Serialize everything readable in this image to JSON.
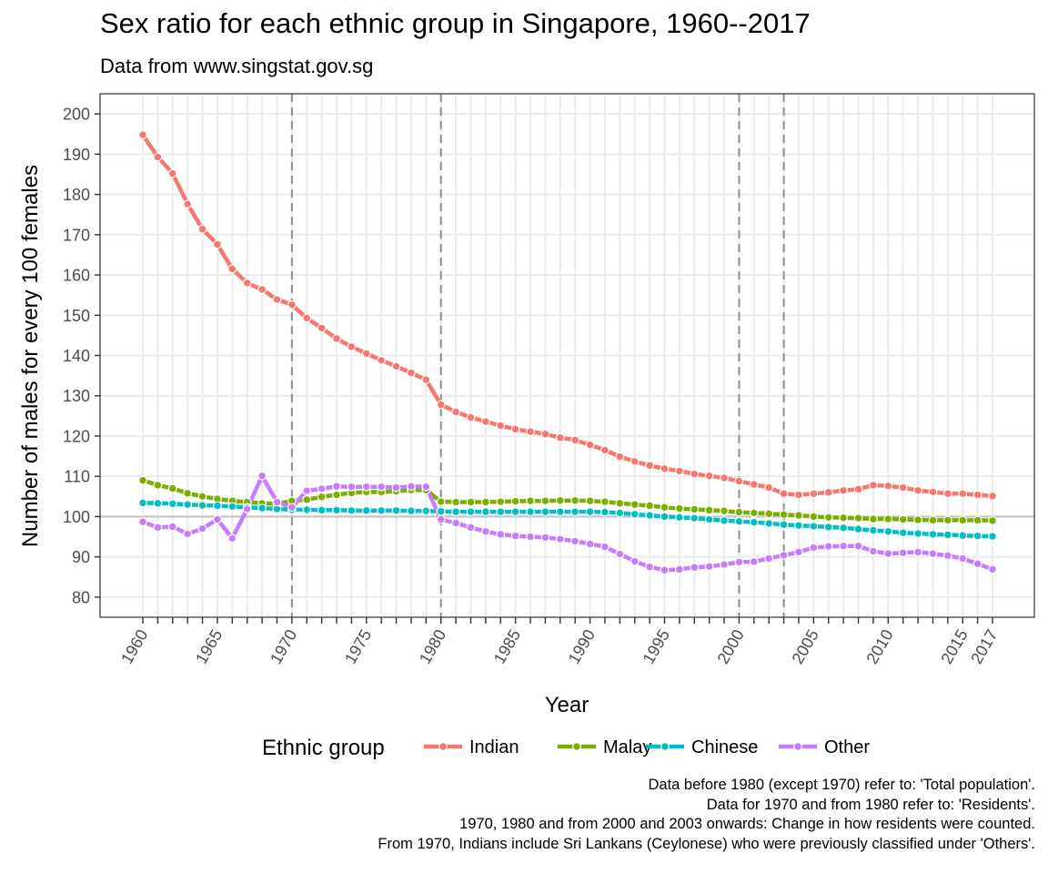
{
  "header": {
    "title": "Sex ratio for each ethnic group in Singapore, 1960--2017",
    "subtitle": "Data from www.singstat.gov.sg"
  },
  "caption": [
    "Data before 1980 (except 1970) refer to: 'Total population'.",
    "Data for 1970 and from 1980 refer to: 'Residents'.",
    "1970, 1980 and from 2000 and 2003 onwards: Change in how residents were counted.",
    "From 1970, Indians include Sri Lankans (Ceylonese) who were previously classified under 'Others'."
  ],
  "chart_data": {
    "type": "line",
    "title": "Sex ratio for each ethnic group in Singapore, 1960--2017",
    "subtitle": "Data from www.singstat.gov.sg",
    "xlabel": "Year",
    "ylabel": "Number of males for every 100 females",
    "xlim": [
      1960,
      2017
    ],
    "ylim": [
      75,
      205
    ],
    "yticks": [
      80,
      90,
      100,
      110,
      120,
      130,
      140,
      150,
      160,
      170,
      180,
      190,
      200
    ],
    "xtick_labels": [
      1960,
      1965,
      1970,
      1975,
      1980,
      1985,
      1990,
      1995,
      2000,
      2005,
      2010,
      2015,
      2017
    ],
    "reference_line_y": 100,
    "vertical_lines_x": [
      1970,
      1980,
      2000,
      2003
    ],
    "grid": true,
    "legend": {
      "title": "Ethnic group",
      "position": "bottom"
    },
    "x": [
      1960,
      1961,
      1962,
      1963,
      1964,
      1965,
      1966,
      1967,
      1968,
      1969,
      1970,
      1971,
      1972,
      1973,
      1974,
      1975,
      1976,
      1977,
      1978,
      1979,
      1980,
      1981,
      1982,
      1983,
      1984,
      1985,
      1986,
      1987,
      1988,
      1989,
      1990,
      1991,
      1992,
      1993,
      1994,
      1995,
      1996,
      1997,
      1998,
      1999,
      2000,
      2001,
      2002,
      2003,
      2004,
      2005,
      2006,
      2007,
      2008,
      2009,
      2010,
      2011,
      2012,
      2013,
      2014,
      2015,
      2016,
      2017
    ],
    "series": [
      {
        "name": "Indian",
        "color": "#F8766D",
        "values": [
          194.8,
          189.3,
          185.2,
          177.6,
          171.4,
          167.6,
          161.5,
          158.0,
          156.4,
          153.9,
          152.6,
          149.3,
          146.8,
          144.2,
          142.2,
          140.5,
          138.8,
          137.3,
          135.7,
          134.0,
          127.8,
          126.0,
          124.6,
          123.6,
          122.6,
          121.7,
          121.1,
          120.5,
          119.6,
          119.0,
          117.8,
          116.5,
          114.9,
          113.7,
          112.7,
          111.9,
          111.3,
          110.6,
          110.1,
          109.6,
          108.8,
          108.0,
          107.2,
          105.7,
          105.4,
          105.7,
          106.0,
          106.5,
          106.8,
          107.8,
          107.6,
          107.2,
          106.5,
          106.1,
          105.7,
          105.7,
          105.4,
          105.1
        ]
      },
      {
        "name": "Malay",
        "color": "#7CAE00",
        "values": [
          109.0,
          107.8,
          107.0,
          105.8,
          105.0,
          104.4,
          103.9,
          103.6,
          103.3,
          103.2,
          103.9,
          104.2,
          104.9,
          105.4,
          105.9,
          106.1,
          106.1,
          106.3,
          106.6,
          106.6,
          103.7,
          103.6,
          103.6,
          103.6,
          103.7,
          103.8,
          103.9,
          103.9,
          104.0,
          104.0,
          103.9,
          103.7,
          103.3,
          103.0,
          102.7,
          102.3,
          102.0,
          101.8,
          101.6,
          101.4,
          101.1,
          100.9,
          100.7,
          100.5,
          100.3,
          100.0,
          99.8,
          99.7,
          99.6,
          99.4,
          99.4,
          99.3,
          99.2,
          99.1,
          99.1,
          99.1,
          99.1,
          99.0
        ]
      },
      {
        "name": "Chinese",
        "color": "#00BFC4",
        "values": [
          103.4,
          103.3,
          103.2,
          103.0,
          102.8,
          102.7,
          102.5,
          102.3,
          102.1,
          101.9,
          101.7,
          101.7,
          101.6,
          101.6,
          101.5,
          101.5,
          101.5,
          101.5,
          101.4,
          101.4,
          101.3,
          101.2,
          101.2,
          101.2,
          101.2,
          101.2,
          101.2,
          101.2,
          101.2,
          101.2,
          101.2,
          101.1,
          100.9,
          100.6,
          100.3,
          100.0,
          99.8,
          99.6,
          99.3,
          99.0,
          98.8,
          98.6,
          98.3,
          98.0,
          97.8,
          97.6,
          97.4,
          97.2,
          96.9,
          96.6,
          96.3,
          96.0,
          95.8,
          95.6,
          95.5,
          95.3,
          95.2,
          95.1
        ]
      },
      {
        "name": "Other",
        "color": "#C77CFF",
        "values": [
          98.7,
          97.3,
          97.5,
          95.7,
          97.0,
          99.3,
          94.6,
          101.9,
          110.1,
          103.6,
          102.3,
          106.4,
          106.9,
          107.5,
          107.4,
          107.4,
          107.4,
          107.2,
          107.5,
          107.4,
          99.3,
          98.4,
          97.3,
          96.3,
          95.6,
          95.2,
          95.0,
          94.8,
          94.4,
          93.9,
          93.2,
          92.5,
          90.7,
          88.9,
          87.5,
          86.7,
          86.9,
          87.4,
          87.6,
          88.1,
          88.7,
          88.8,
          89.6,
          90.4,
          91.2,
          92.3,
          92.6,
          92.7,
          92.7,
          91.4,
          90.8,
          91.0,
          91.2,
          90.8,
          90.3,
          89.6,
          88.3,
          86.9
        ]
      }
    ]
  }
}
